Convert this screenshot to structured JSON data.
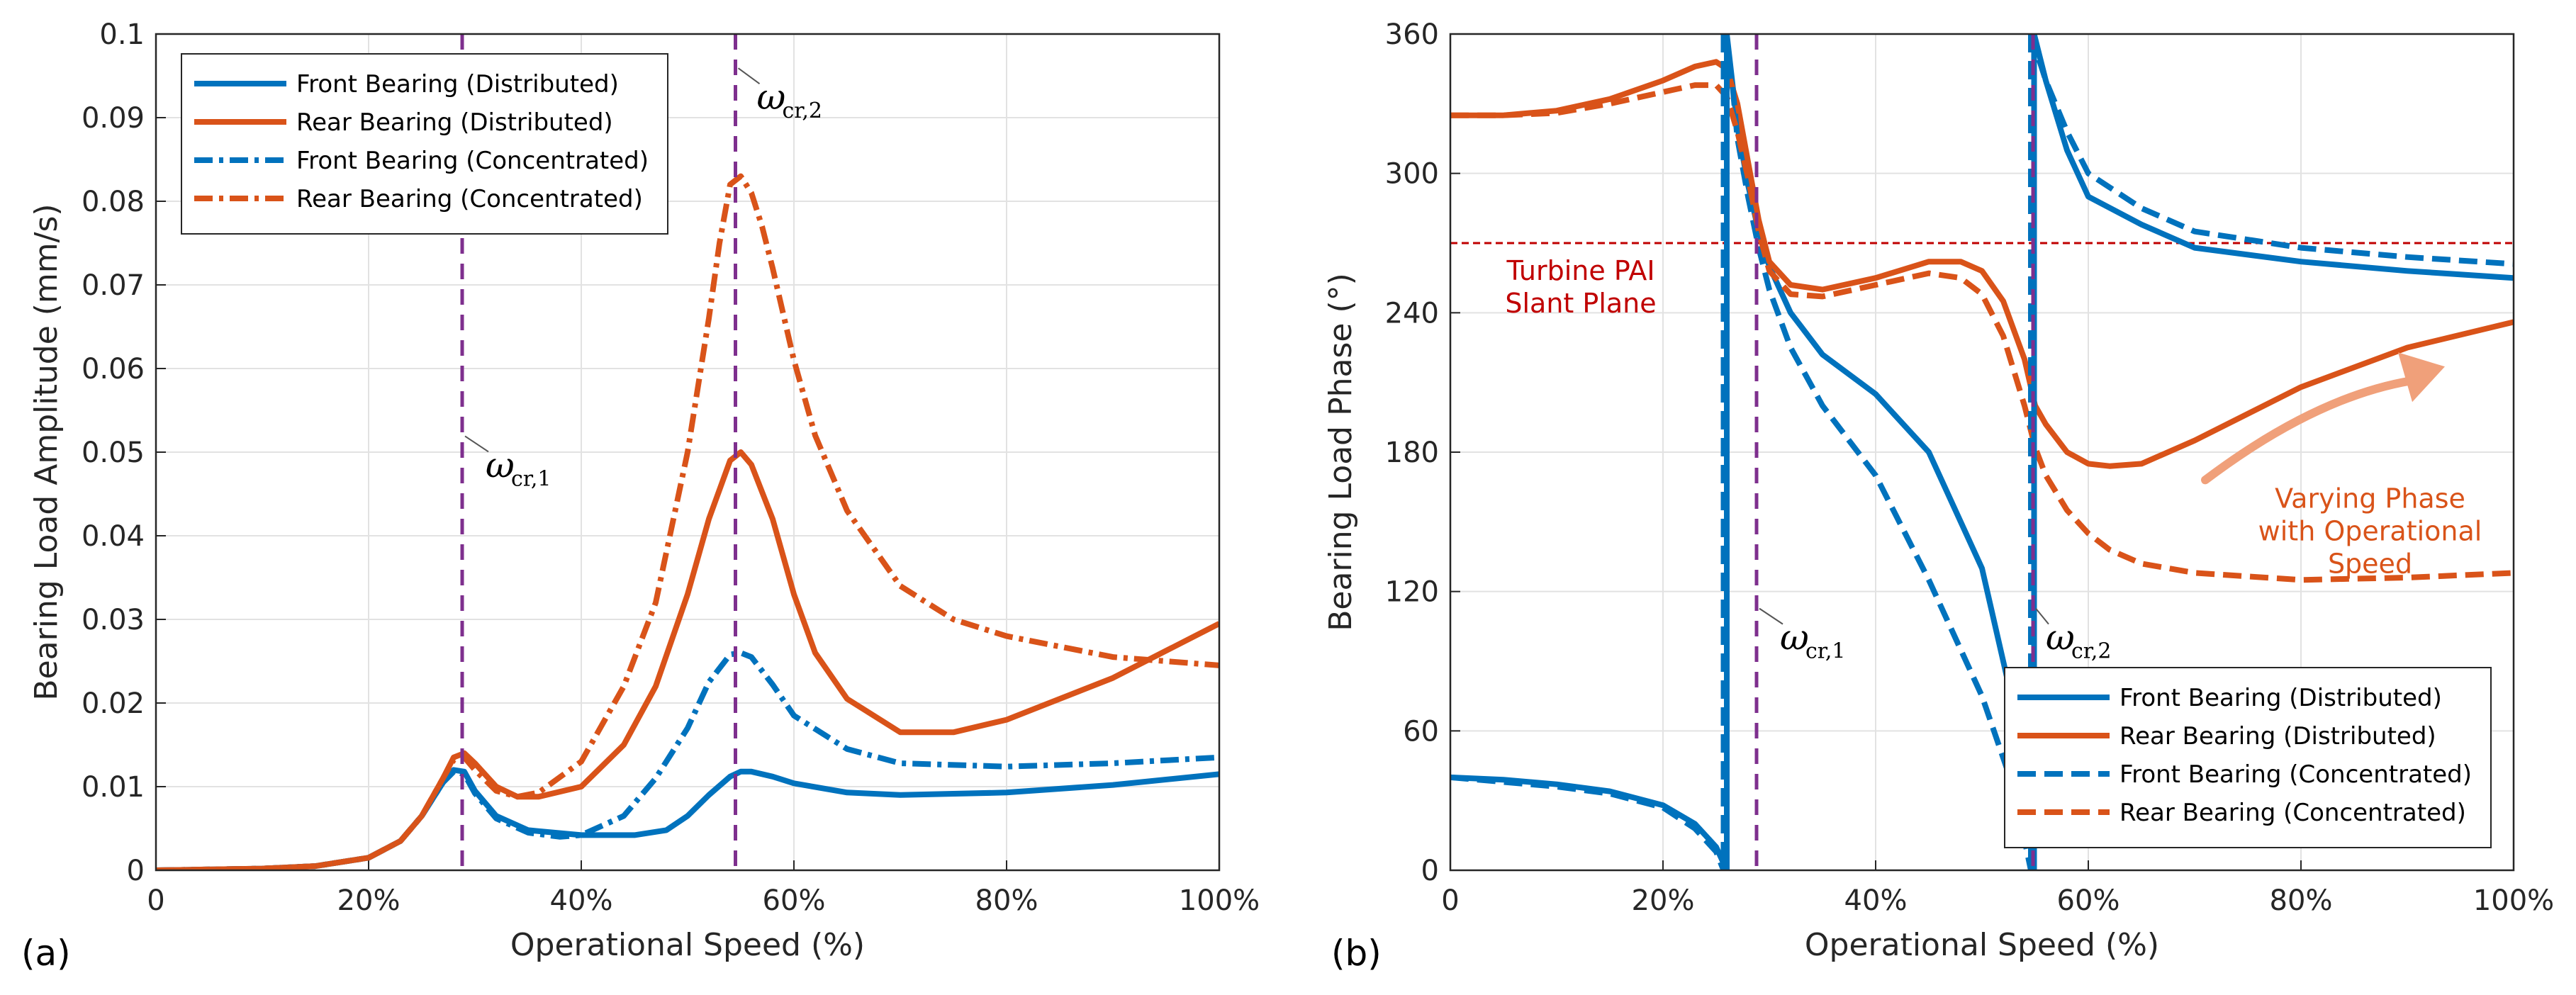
{
  "colors": {
    "front": "#0072BD",
    "rear": "#D95319",
    "critical": "#7E2F8E",
    "pai": "#C00000",
    "arrow": "#F0A07A"
  },
  "chart_data": [
    {
      "panel_label": "(a)",
      "type": "line",
      "xlabel": "Operational Speed (%)",
      "ylabel": "Bearing Load Amplitude (mm/s)",
      "xlim": [
        0,
        100
      ],
      "ylim": [
        0,
        0.1
      ],
      "xticks": [
        0,
        20,
        40,
        60,
        80,
        100
      ],
      "xtick_labels": [
        "0",
        "20%",
        "40%",
        "60%",
        "80%",
        "100%"
      ],
      "yticks": [
        0,
        0.01,
        0.02,
        0.03,
        0.04,
        0.05,
        0.06,
        0.07,
        0.08,
        0.09,
        0.1
      ],
      "ytick_labels": [
        "0",
        "0.01",
        "0.02",
        "0.03",
        "0.04",
        "0.05",
        "0.06",
        "0.07",
        "0.08",
        "0.09",
        "0.1"
      ],
      "grid": true,
      "legend_position": "top-left",
      "critical_lines": [
        {
          "x": 28.8,
          "label": "ω",
          "sub": "cr,1",
          "label_x": 31,
          "label_y": 0.047
        },
        {
          "x": 54.5,
          "label": "ω",
          "sub": "cr,2",
          "label_x": 56.5,
          "label_y": 0.091
        }
      ],
      "series": [
        {
          "name": "Front Bearing (Distributed)",
          "color_key": "front",
          "style": "solid",
          "x": [
            0,
            10,
            15,
            20,
            23,
            25,
            27,
            28,
            29,
            30,
            32,
            35,
            40,
            45,
            48,
            50,
            52,
            54,
            55,
            56,
            58,
            60,
            65,
            70,
            80,
            90,
            100
          ],
          "y": [
            0,
            0.0002,
            0.0005,
            0.0015,
            0.0035,
            0.0065,
            0.0105,
            0.012,
            0.0118,
            0.0095,
            0.0065,
            0.0048,
            0.0042,
            0.0042,
            0.0048,
            0.0065,
            0.009,
            0.0112,
            0.0118,
            0.0118,
            0.0112,
            0.0104,
            0.0093,
            0.009,
            0.0093,
            0.0102,
            0.0115
          ]
        },
        {
          "name": "Rear Bearing (Distributed)",
          "color_key": "rear",
          "style": "solid",
          "x": [
            0,
            10,
            15,
            20,
            23,
            25,
            27,
            28,
            29,
            30,
            32,
            34,
            36,
            40,
            44,
            47,
            50,
            52,
            54,
            55,
            56,
            58,
            60,
            62,
            65,
            70,
            75,
            80,
            90,
            100
          ],
          "y": [
            0,
            0.0002,
            0.0005,
            0.0015,
            0.0035,
            0.0065,
            0.011,
            0.0135,
            0.014,
            0.0128,
            0.01,
            0.0088,
            0.0088,
            0.01,
            0.015,
            0.022,
            0.033,
            0.042,
            0.049,
            0.05,
            0.0485,
            0.042,
            0.033,
            0.026,
            0.0205,
            0.0165,
            0.0165,
            0.018,
            0.023,
            0.0295
          ]
        },
        {
          "name": "Front Bearing (Concentrated)",
          "color_key": "front",
          "style": "dashdot",
          "x": [
            0,
            10,
            15,
            20,
            23,
            25,
            27,
            28,
            29,
            30,
            32,
            35,
            38,
            40,
            44,
            47,
            50,
            52,
            54,
            55,
            56,
            58,
            60,
            65,
            70,
            80,
            90,
            100
          ],
          "y": [
            0,
            0.0002,
            0.0005,
            0.0015,
            0.0035,
            0.0065,
            0.0105,
            0.0118,
            0.0115,
            0.0092,
            0.0062,
            0.0045,
            0.004,
            0.0042,
            0.0065,
            0.011,
            0.017,
            0.0225,
            0.0258,
            0.026,
            0.0255,
            0.0222,
            0.0185,
            0.0145,
            0.0128,
            0.0124,
            0.0128,
            0.0135
          ]
        },
        {
          "name": "Rear Bearing (Concentrated)",
          "color_key": "rear",
          "style": "dashdot",
          "x": [
            0,
            10,
            15,
            20,
            23,
            25,
            27,
            28,
            29,
            30,
            32,
            34,
            36,
            40,
            44,
            47,
            50,
            52,
            53,
            54,
            55,
            56,
            57,
            58,
            60,
            62,
            65,
            70,
            75,
            80,
            90,
            100
          ],
          "y": [
            0,
            0.0002,
            0.0005,
            0.0015,
            0.0035,
            0.0065,
            0.011,
            0.0132,
            0.0135,
            0.012,
            0.0095,
            0.0088,
            0.0093,
            0.013,
            0.022,
            0.032,
            0.05,
            0.066,
            0.075,
            0.082,
            0.083,
            0.081,
            0.077,
            0.072,
            0.061,
            0.052,
            0.043,
            0.034,
            0.03,
            0.028,
            0.0255,
            0.0245
          ]
        }
      ]
    },
    {
      "panel_label": "(b)",
      "type": "line",
      "xlabel": "Operational Speed (%)",
      "ylabel": "Bearing Load Phase (°)",
      "xlim": [
        0,
        100
      ],
      "ylim": [
        0,
        360
      ],
      "xticks": [
        0,
        20,
        40,
        60,
        80,
        100
      ],
      "xtick_labels": [
        "0",
        "20%",
        "40%",
        "60%",
        "80%",
        "100%"
      ],
      "yticks": [
        0,
        60,
        120,
        180,
        240,
        300,
        360
      ],
      "ytick_labels": [
        "0",
        "60",
        "120",
        "180",
        "240",
        "300",
        "360"
      ],
      "grid": true,
      "legend_position": "bottom-right",
      "reference_line": {
        "y": 270,
        "label_line1": "Turbine PAI",
        "label_line2": "Slant Plane"
      },
      "annotation": {
        "line1": "Varying Phase",
        "line2": "with Operational",
        "line3": "Speed",
        "arrow_from": [
          71,
          168
        ],
        "arrow_to": [
          93,
          215
        ]
      },
      "critical_lines": [
        {
          "x": 28.8,
          "label": "ω",
          "sub": "cr,1",
          "label_x": 31,
          "label_y": 95
        },
        {
          "x": 54.8,
          "label": "ω",
          "sub": "cr,2",
          "label_x": 56,
          "label_y": 95
        }
      ],
      "series": [
        {
          "name": "Front Bearing (Distributed)",
          "color_key": "front",
          "style": "solid",
          "x": [
            0,
            5,
            10,
            15,
            20,
            23,
            25,
            26,
            26,
            26.5,
            27,
            28,
            29,
            30,
            32,
            35,
            40,
            45,
            50,
            53,
            54.9,
            54.9,
            56,
            58,
            60,
            65,
            70,
            80,
            90,
            100
          ],
          "y": [
            40,
            39,
            37,
            34,
            28,
            20,
            10,
            0,
            360,
            340,
            320,
            295,
            275,
            260,
            240,
            222,
            205,
            180,
            130,
            70,
            0,
            360,
            340,
            310,
            290,
            278,
            268,
            262,
            258,
            255
          ]
        },
        {
          "name": "Rear Bearing (Distributed)",
          "color_key": "rear",
          "style": "solid",
          "x": [
            0,
            5,
            10,
            15,
            20,
            23,
            25,
            26,
            27,
            28,
            29,
            30,
            32,
            35,
            40,
            45,
            48,
            50,
            52,
            54,
            55,
            56,
            58,
            60,
            62,
            65,
            70,
            80,
            90,
            100
          ],
          "y": [
            325,
            325,
            327,
            332,
            340,
            346,
            348,
            345,
            330,
            305,
            280,
            262,
            252,
            250,
            255,
            262,
            262,
            258,
            245,
            220,
            200,
            192,
            180,
            175,
            174,
            175,
            185,
            208,
            225,
            236
          ]
        },
        {
          "name": "Front Bearing (Concentrated)",
          "color_key": "front",
          "style": "dashed",
          "x": [
            0,
            5,
            10,
            15,
            20,
            23,
            25,
            25.7,
            25.7,
            26.5,
            27,
            28,
            29,
            30,
            32,
            35,
            40,
            45,
            50,
            53,
            54.6,
            54.6,
            56,
            58,
            60,
            65,
            70,
            80,
            90,
            100
          ],
          "y": [
            40,
            38,
            36,
            33,
            27,
            18,
            8,
            0,
            360,
            340,
            315,
            290,
            268,
            250,
            225,
            200,
            170,
            125,
            75,
            35,
            0,
            360,
            340,
            318,
            300,
            285,
            275,
            268,
            264,
            261
          ]
        },
        {
          "name": "Rear Bearing (Concentrated)",
          "color_key": "rear",
          "style": "dashed",
          "x": [
            0,
            5,
            10,
            15,
            20,
            23,
            25,
            26,
            27,
            28,
            29,
            30,
            32,
            35,
            40,
            45,
            48,
            50,
            52,
            54,
            55,
            56,
            58,
            60,
            62,
            65,
            70,
            80,
            90,
            100
          ],
          "y": [
            325,
            325,
            326,
            330,
            335,
            338,
            338,
            333,
            318,
            298,
            275,
            258,
            248,
            247,
            252,
            257,
            255,
            248,
            230,
            200,
            182,
            170,
            155,
            145,
            138,
            132,
            128,
            125,
            126,
            128
          ]
        }
      ]
    }
  ]
}
